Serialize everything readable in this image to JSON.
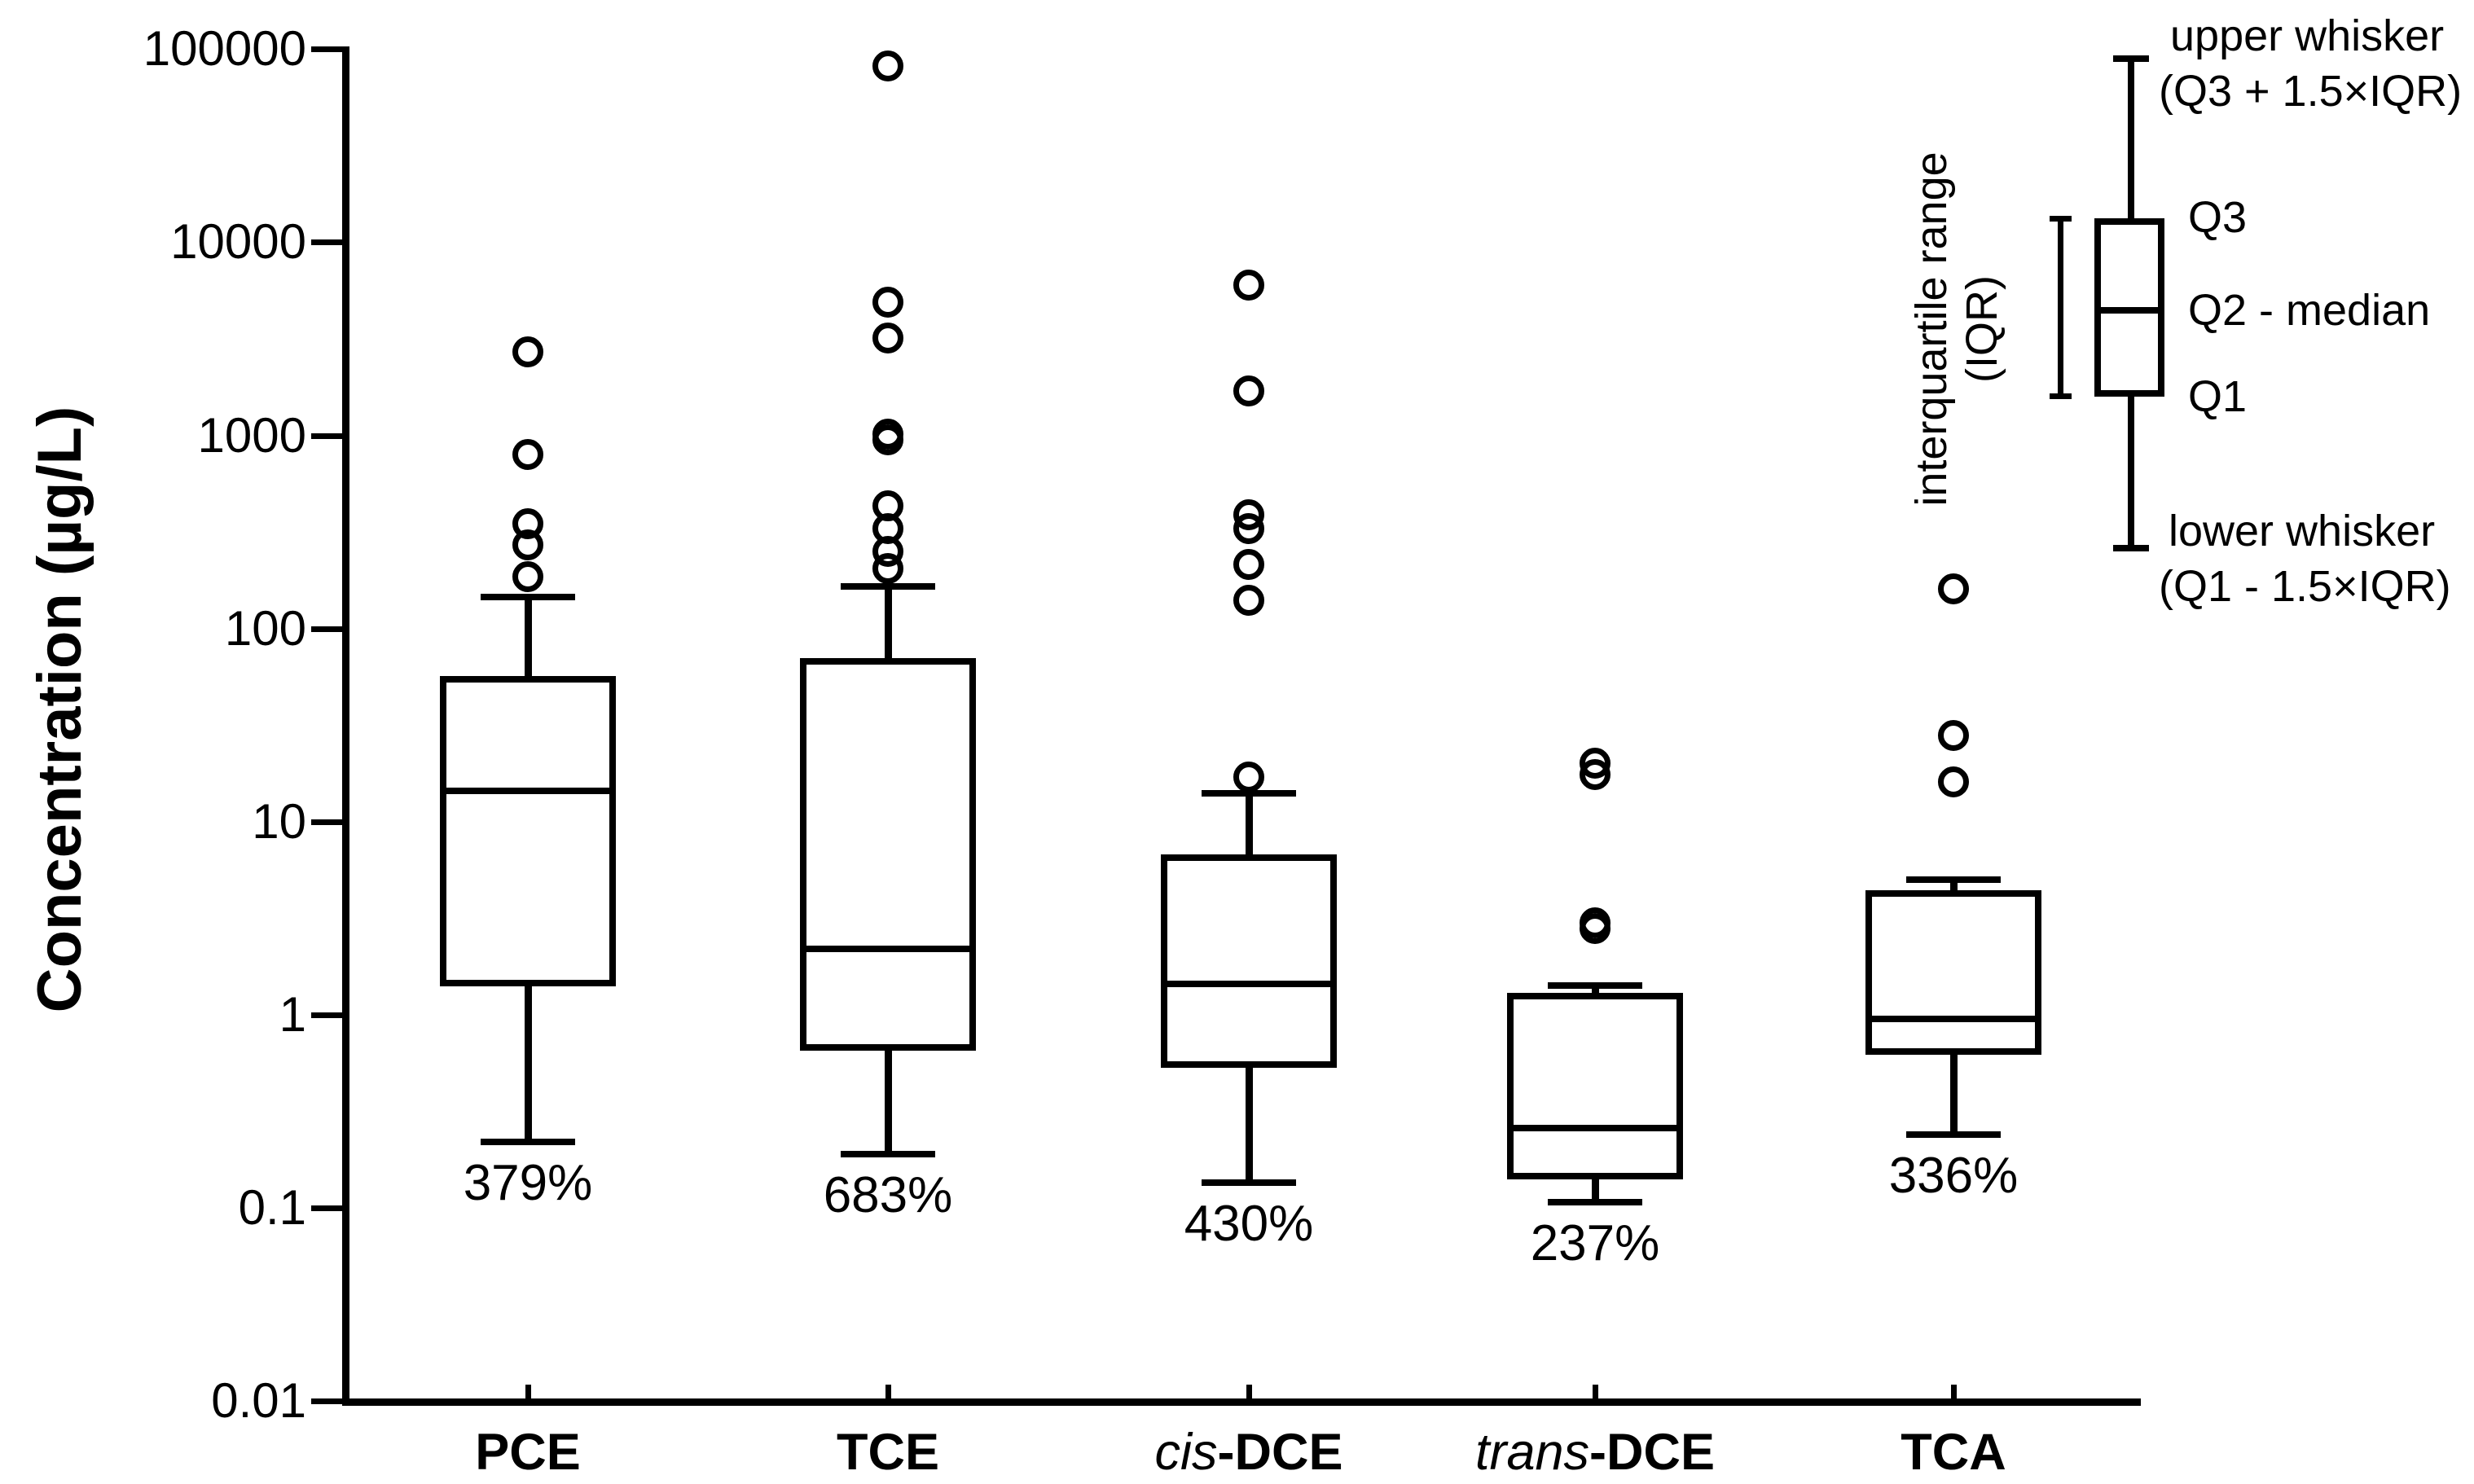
{
  "y_axis": {
    "label": "Concentration (µg/L)",
    "tick_labels": [
      "100000",
      "10000",
      "1000",
      "100",
      "10",
      "1",
      "0.1",
      "0.01"
    ],
    "tick_values": [
      100000,
      10000,
      1000,
      100,
      10,
      1,
      0.1,
      0.01
    ],
    "scale": "log"
  },
  "chart_data": {
    "type": "box",
    "title": "",
    "xlabel": "",
    "ylabel": "Concentration (µg/L)",
    "ylim": [
      0.01,
      100000
    ],
    "yscale": "log",
    "grid": false,
    "legend_position": "top-right",
    "categories": [
      {
        "italic": "",
        "text": "PCE"
      },
      {
        "italic": "",
        "text": "TCE"
      },
      {
        "italic": "cis",
        "text": "-DCE"
      },
      {
        "italic": "trans",
        "text": "-DCE"
      },
      {
        "italic": "",
        "text": "TCA"
      }
    ],
    "series": [
      {
        "name": "PCE",
        "q1": 1.4,
        "median": 14.5,
        "q3": 57,
        "whisker_low": 0.22,
        "whisker_high": 145,
        "outliers": [
          2700,
          800,
          350,
          270,
          185
        ],
        "annotation": "379%"
      },
      {
        "name": "TCE",
        "q1": 0.65,
        "median": 2.2,
        "q3": 70,
        "whisker_low": 0.19,
        "whisker_high": 165,
        "outliers": [
          82000,
          4900,
          3200,
          1020,
          950,
          430,
          330,
          250,
          205
        ],
        "annotation": "683%"
      },
      {
        "name": "cis-DCE",
        "q1": 0.53,
        "median": 1.45,
        "q3": 6.8,
        "whisker_low": 0.135,
        "whisker_high": 14,
        "outliers": [
          6000,
          1700,
          390,
          330,
          215,
          140,
          17
        ],
        "annotation": "430%"
      },
      {
        "name": "trans-DCE",
        "q1": 0.14,
        "median": 0.26,
        "q3": 1.3,
        "whisker_low": 0.107,
        "whisker_high": 1.42,
        "outliers": [
          20,
          17.5,
          3.0,
          2.8
        ],
        "annotation": "237%"
      },
      {
        "name": "TCA",
        "q1": 0.62,
        "median": 0.95,
        "q3": 4.4,
        "whisker_low": 0.24,
        "whisker_high": 5.0,
        "outliers": [
          160,
          28,
          16
        ],
        "annotation": "336%"
      }
    ]
  },
  "legend": {
    "upper_whisker_line1": "upper whisker",
    "upper_whisker_line2": "(Q3 + 1.5×IQR)",
    "q3_label": "Q3",
    "median_label": "Q2 - median",
    "q1_label": "Q1",
    "lower_whisker_line1": "lower whisker",
    "lower_whisker_line2": "(Q1 - 1.5×IQR)",
    "iqr_label_line1": "interquartile range",
    "iqr_label_line2": "(IQR)"
  },
  "colors": {
    "stroke": "#000000",
    "background": "#ffffff"
  }
}
